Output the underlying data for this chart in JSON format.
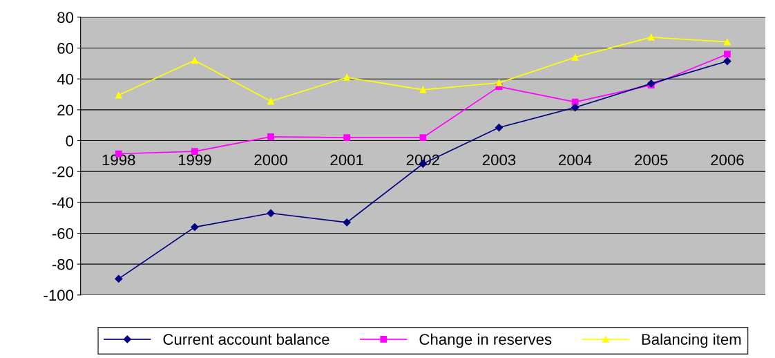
{
  "chart_data": {
    "type": "line",
    "categories": [
      "1998",
      "1999",
      "2000",
      "2001",
      "2002",
      "2003",
      "2004",
      "2005",
      "2006"
    ],
    "series": [
      {
        "name": "Current account balance",
        "color": "#000080",
        "marker": "diamond",
        "values": [
          -89.5,
          -56,
          -47,
          -53,
          -15,
          8.5,
          21.5,
          37,
          51.5
        ]
      },
      {
        "name": "Change in reserves",
        "color": "#ff00ff",
        "marker": "square",
        "values": [
          -8.5,
          -7,
          2.5,
          2,
          2,
          35,
          25,
          36,
          56
        ]
      },
      {
        "name": "Balancing item",
        "color": "#ffff00",
        "marker": "triangle",
        "values": [
          29.5,
          52,
          25.5,
          41,
          33,
          37.5,
          54,
          67,
          64
        ]
      }
    ],
    "ylim": [
      -100,
      80
    ],
    "yticks": [
      -100,
      -80,
      -60,
      -40,
      -20,
      0,
      20,
      40,
      60,
      80
    ],
    "grid": "y",
    "legend": "bottom",
    "line_style": "solid"
  }
}
